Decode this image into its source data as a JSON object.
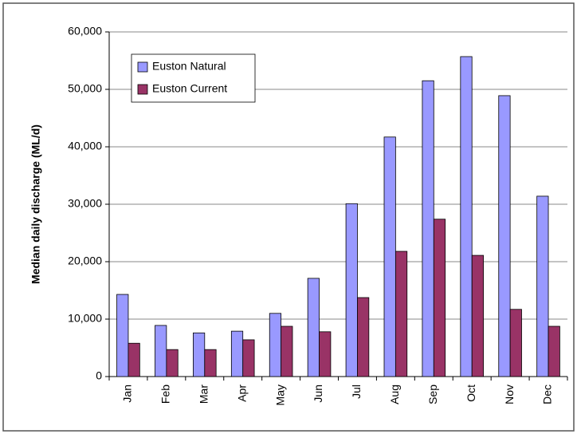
{
  "chart_data": {
    "type": "bar",
    "y_label": "Median daily discharge (ML/d)",
    "categories": [
      "Jan",
      "Feb",
      "Mar",
      "Apr",
      "May",
      "Jun",
      "Jul",
      "Aug",
      "Sep",
      "Oct",
      "Nov",
      "Dec"
    ],
    "series": [
      {
        "name": "Euston Natural",
        "color": "#9999ff",
        "values": [
          14300,
          8900,
          7600,
          7900,
          11000,
          17100,
          30100,
          41700,
          51500,
          55700,
          48900,
          31400
        ]
      },
      {
        "name": "Euston Current",
        "color": "#993366",
        "values": [
          5800,
          4700,
          4700,
          6400,
          8750,
          7800,
          13750,
          21800,
          27400,
          21100,
          11700,
          8750
        ]
      }
    ],
    "ylim": [
      0,
      60000
    ],
    "yticks": [
      0,
      {
        "value": 10000,
        "label": "10,000"
      },
      {
        "value": 20000,
        "label": "20,000"
      },
      {
        "value": 30000,
        "label": "30,000"
      },
      {
        "value": 40000,
        "label": "40,000"
      },
      {
        "value": 50000,
        "label": "50,000"
      },
      {
        "value": 60000,
        "label": "60,000"
      }
    ],
    "grid": true,
    "legend": "top-left"
  }
}
